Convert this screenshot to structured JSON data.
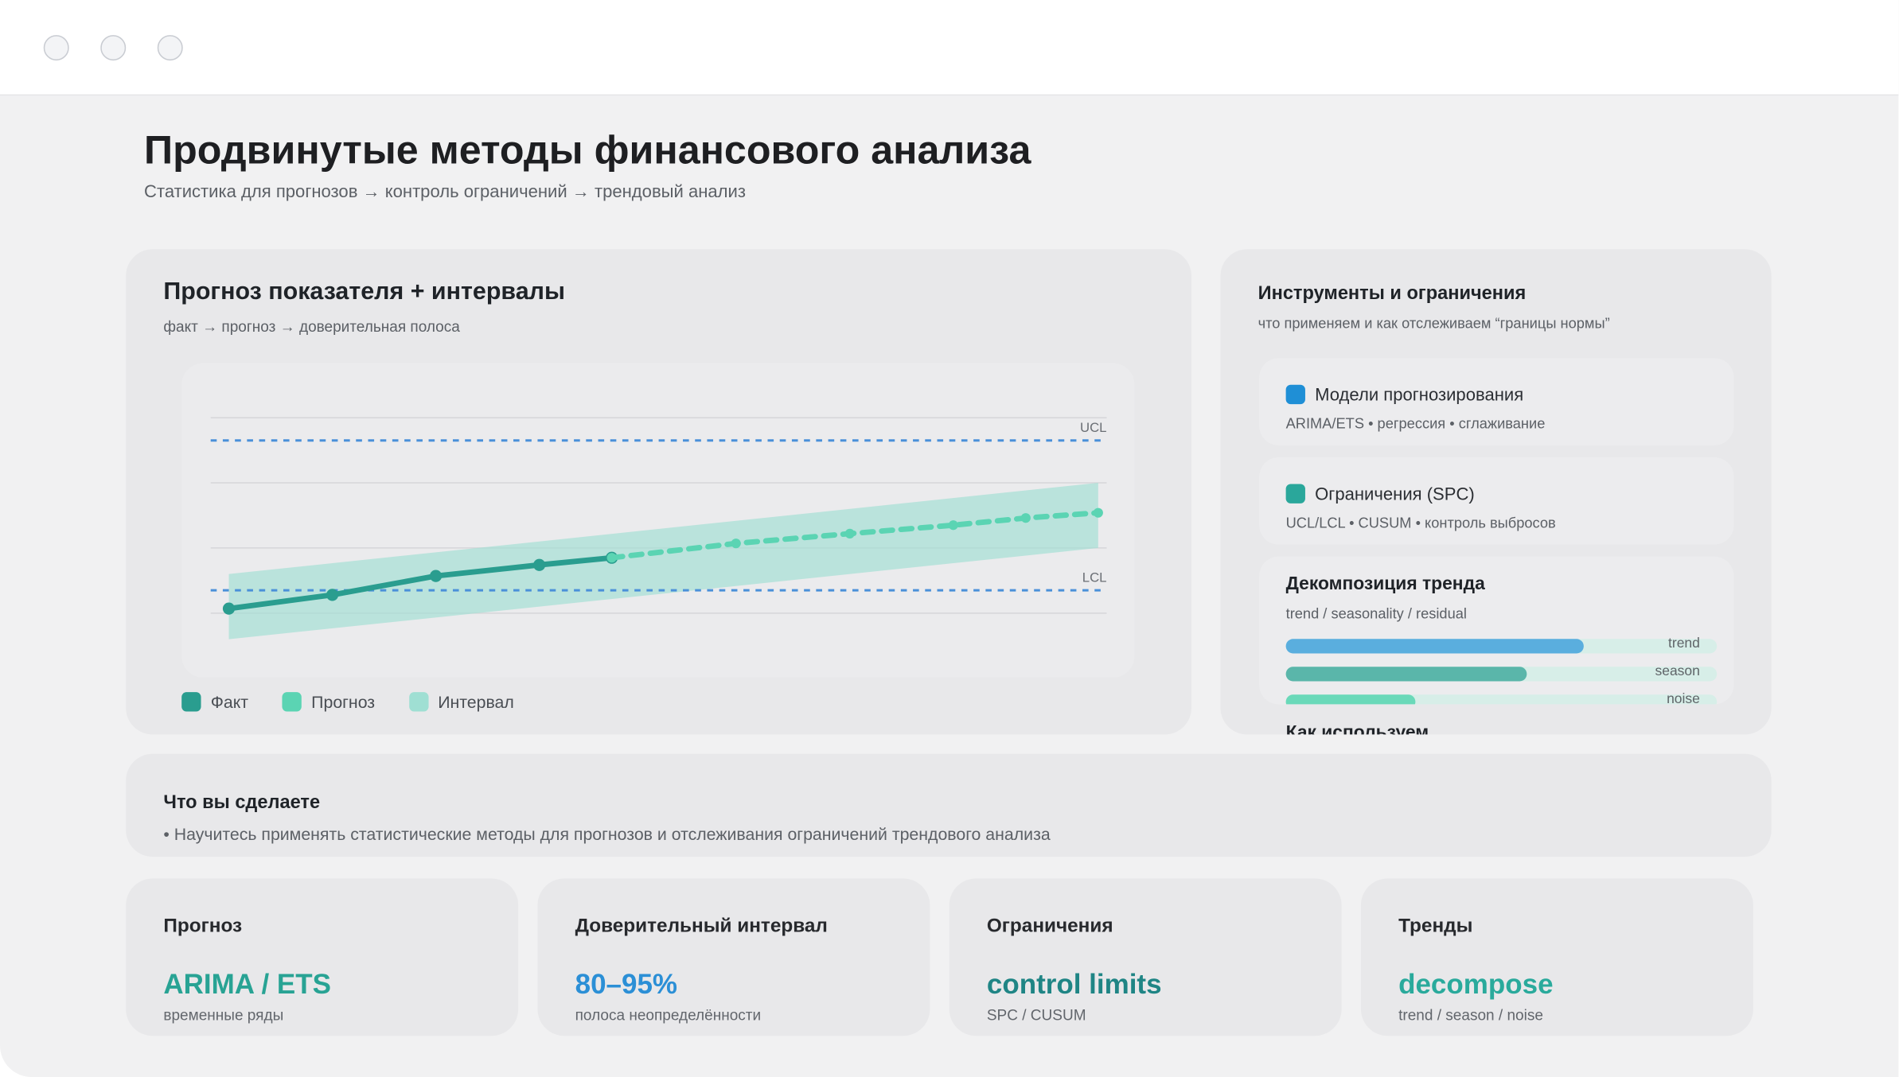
{
  "header": {
    "title": "Продвинутые методы финансового анализа",
    "subtitle": "Статистика для прогнозов → контроль ограничений → трендовый анализ"
  },
  "forecast_card": {
    "title": "Прогноз показателя + интервалы",
    "subtitle": "факт → прогноз → доверительная полоса",
    "chart_data": {
      "type": "line",
      "xlim": [
        0,
        8.4
      ],
      "ylim": [
        -0.6,
        3.3
      ],
      "grid_lines": [
        0,
        1,
        2,
        3
      ],
      "series": [
        {
          "name": "Факт",
          "color": "#2a9d8f",
          "x": [
            0,
            1,
            2,
            3,
            3.7
          ],
          "values": [
            0.07,
            0.28,
            0.57,
            0.74,
            0.85
          ]
        },
        {
          "name": "Прогноз",
          "color": "#5bd4b3",
          "x": [
            3.7,
            4.9,
            6,
            7,
            7.7,
            8.4
          ],
          "values": [
            0.85,
            1.07,
            1.22,
            1.35,
            1.46,
            1.54
          ]
        }
      ],
      "interval": {
        "name": "Интервал",
        "color": "#9fdfd3",
        "x": [
          0,
          8.4
        ],
        "lower": [
          -0.4,
          1.0
        ],
        "upper": [
          0.6,
          2.0
        ]
      },
      "limits": [
        {
          "label": "UCL",
          "value": 2.65,
          "color": "#4a90d9"
        },
        {
          "label": "LCL",
          "value": 0.35,
          "color": "#4a90d9"
        }
      ]
    }
  },
  "tools_card": {
    "title": "Инструменты и ограничения",
    "subtitle": "что применяем и как отслеживаем “границы нормы”",
    "items": [
      {
        "label": "Модели прогнозирования",
        "desc": "ARIMA/ETS • регрессия • сглаживание",
        "color": "#1f8fd6"
      },
      {
        "label": "Ограничения (SPC)",
        "desc": "UCL/LCL • CUSUM • контроль выбросов",
        "color": "#2aa79b"
      }
    ],
    "decomposition": {
      "title": "Декомпозиция тренда",
      "subtitle": "trend / seasonality / residual",
      "xlim": [
        0,
        100
      ],
      "bars": [
        {
          "name": "trend",
          "value": 69,
          "color": "#5aaede"
        },
        {
          "name": "season",
          "value": 56,
          "color": "#5ab6aa"
        },
        {
          "name": "noise",
          "value": 30,
          "color": "#6ad9b9"
        }
      ]
    },
    "next_title": "Как используем"
  },
  "outcome": {
    "title": "Что вы сделаете",
    "items": [
      "Научитесь применять статистические методы для прогнозов и отслеживания ограничений трендового анализа"
    ]
  },
  "stats": [
    {
      "title": "Прогноз",
      "value": "ARIMA / ETS",
      "caption": "временные ряды",
      "color": "#28a394"
    },
    {
      "title": "Доверительный интервал",
      "value": "80–95%",
      "caption": "полоса неопределённости",
      "color": "#2b8fd6"
    },
    {
      "title": "Ограничения",
      "value": "control limits",
      "caption": "SPC / CUSUM",
      "color": "#1f8585"
    },
    {
      "title": "Тренды",
      "value": "decompose",
      "caption": "trend / season / noise",
      "color": "#2aaa9c"
    }
  ]
}
